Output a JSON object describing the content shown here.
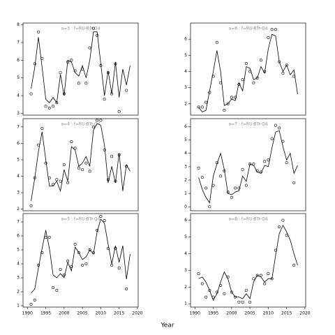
{
  "xlabel": "Year",
  "chart_data": [
    {
      "type": "line",
      "title": "a=3 : f=RU-BTr-Q4",
      "x": [
        1991,
        1992,
        1993,
        1994,
        1995,
        1996,
        1997,
        1998,
        1999,
        2000,
        2001,
        2002,
        2003,
        2004,
        2005,
        2006,
        2007,
        2008,
        2009,
        2010,
        2011,
        2012,
        2013,
        2014,
        2015,
        2016,
        2017,
        2018
      ],
      "series": [
        {
          "style": "points",
          "color": "#000000",
          "values": [
            4.1,
            5.8,
            7.6,
            6.1,
            3.4,
            3.3,
            3.4,
            3.6,
            5.3,
            4.1,
            5.9,
            6.0,
            5.4,
            4.7,
            5.5,
            4.7,
            6.7,
            7.8,
            7.4,
            5.7,
            3.8,
            5.3,
            4.1,
            5.8,
            3.1,
            null,
            4.3,
            null
          ]
        },
        {
          "style": "line",
          "color": "#000000",
          "values": [
            4.4,
            5.6,
            7.3,
            5.6,
            3.8,
            3.6,
            3.9,
            3.6,
            5.2,
            4.0,
            6.0,
            5.9,
            5.3,
            5.1,
            5.7,
            5.0,
            6.0,
            7.6,
            7.6,
            5.8,
            4.0,
            5.4,
            4.1,
            5.9,
            3.9,
            5.5,
            4.6,
            5.7
          ]
        }
      ],
      "xlim": [
        1988.8,
        2020.2
      ],
      "ylim": [
        2.9,
        8.1
      ],
      "yticks": [
        3,
        4,
        5,
        6,
        7,
        8
      ]
    },
    {
      "type": "line",
      "title": "a=6 : f=RU-BTr-Q4",
      "x": [
        1991,
        1992,
        1993,
        1994,
        1995,
        1996,
        1997,
        1998,
        1999,
        2000,
        2001,
        2002,
        2003,
        2004,
        2005,
        2006,
        2007,
        2008,
        2009,
        2010,
        2011,
        2012,
        2013,
        2014,
        2015,
        2016,
        2017,
        2018
      ],
      "series": [
        {
          "style": "points",
          "color": "#000000",
          "values": [
            1.8,
            1.8,
            2.1,
            2.7,
            3.7,
            5.8,
            3.3,
            1.6,
            2.0,
            2.4,
            2.4,
            3.2,
            3.5,
            4.5,
            4.0,
            3.3,
            3.6,
            4.7,
            4.0,
            6.1,
            6.6,
            6.6,
            4.6,
            3.9,
            4.4,
            null,
            3.7,
            null
          ]
        },
        {
          "style": "line",
          "color": "#000000",
          "values": [
            1.8,
            1.5,
            1.6,
            2.8,
            4.0,
            5.3,
            4.0,
            1.9,
            2.0,
            2.3,
            2.2,
            3.3,
            2.8,
            4.3,
            4.2,
            3.5,
            3.6,
            4.3,
            3.9,
            5.4,
            6.3,
            6.2,
            4.6,
            4.0,
            4.4,
            3.8,
            4.1,
            2.6
          ]
        }
      ],
      "xlim": [
        1988.8,
        2020.2
      ],
      "ylim": [
        1.3,
        7.0
      ],
      "yticks": [
        2,
        3,
        4,
        5,
        6
      ]
    },
    {
      "type": "line",
      "title": "a=4 : f=RU-BTr-Q4",
      "x": [
        1991,
        1992,
        1993,
        1994,
        1995,
        1996,
        1997,
        1998,
        1999,
        2000,
        2001,
        2002,
        2003,
        2004,
        2005,
        2006,
        2007,
        2008,
        2009,
        2010,
        2011,
        2012,
        2013,
        2014,
        2015,
        2016,
        2017,
        2018
      ],
      "series": [
        {
          "style": "points",
          "color": "#000000",
          "values": [
            2.2,
            3.9,
            5.9,
            6.9,
            4.8,
            3.9,
            3.5,
            3.8,
            3.7,
            4.7,
            3.6,
            6.1,
            5.7,
            4.5,
            4.4,
            4.8,
            4.3,
            7.0,
            7.4,
            7.4,
            5.6,
            3.8,
            5.2,
            3.7,
            5.3,
            null,
            4.6,
            null
          ]
        },
        {
          "style": "line",
          "color": "#000000",
          "values": [
            2.5,
            3.9,
            5.5,
            6.7,
            5.0,
            3.4,
            3.4,
            3.7,
            3.1,
            4.4,
            3.7,
            5.8,
            5.6,
            4.6,
            4.8,
            5.2,
            4.6,
            6.8,
            7.2,
            7.1,
            5.9,
            3.6,
            4.6,
            3.6,
            5.4,
            3.1,
            4.7,
            4.3
          ]
        }
      ],
      "xlim": [
        1988.8,
        2020.2
      ],
      "ylim": [
        1.9,
        7.5
      ],
      "yticks": [
        2,
        3,
        4,
        5,
        6,
        7
      ]
    },
    {
      "type": "line",
      "title": "a=7 : f=RU-BTr-Q4",
      "x": [
        1991,
        1992,
        1993,
        1994,
        1995,
        1996,
        1997,
        1998,
        1999,
        2000,
        2001,
        2002,
        2003,
        2004,
        2005,
        2006,
        2007,
        2008,
        2009,
        2010,
        2011,
        2012,
        2013,
        2014,
        2015,
        2016,
        2017,
        2018
      ],
      "series": [
        {
          "style": "points",
          "color": "#000000",
          "values": [
            2.9,
            2.2,
            1.4,
            0.0,
            1.6,
            3.3,
            2.3,
            2.7,
            1.1,
            0.7,
            1.4,
            1.4,
            2.8,
            1.6,
            3.2,
            3.2,
            2.7,
            2.6,
            3.4,
            3.5,
            5.1,
            6.1,
            5.9,
            4.9,
            3.3,
            null,
            1.8,
            null
          ]
        },
        {
          "style": "line",
          "color": "#000000",
          "values": [
            2.2,
            1.3,
            0.7,
            0.3,
            2.3,
            3.2,
            4.0,
            2.8,
            1.0,
            0.9,
            1.1,
            1.2,
            2.3,
            1.9,
            3.2,
            3.1,
            2.6,
            2.5,
            3.1,
            3.0,
            4.4,
            5.6,
            5.7,
            4.5,
            3.5,
            4.0,
            2.5,
            3.1
          ]
        }
      ],
      "xlim": [
        1988.8,
        2020.2
      ],
      "ylim": [
        -0.3,
        6.6
      ],
      "yticks": [
        0,
        1,
        2,
        3,
        4,
        5,
        6
      ]
    },
    {
      "type": "line",
      "title": "a=5 : f=RU-BTr-Q4",
      "x": [
        1991,
        1992,
        1993,
        1994,
        1995,
        1996,
        1997,
        1998,
        1999,
        2000,
        2001,
        2002,
        2003,
        2004,
        2005,
        2006,
        2007,
        2008,
        2009,
        2010,
        2011,
        2012,
        2013,
        2014,
        2015,
        2016,
        2017,
        2018
      ],
      "series": [
        {
          "style": "points",
          "color": "#000000",
          "values": [
            1.1,
            1.4,
            3.9,
            4.8,
            5.9,
            5.9,
            2.3,
            2.1,
            3.6,
            3.2,
            4.2,
            3.8,
            5.4,
            4.8,
            3.9,
            4.0,
            5.0,
            4.8,
            6.4,
            7.4,
            7.1,
            5.1,
            3.9,
            5.1,
            3.7,
            null,
            2.2,
            null
          ]
        },
        {
          "style": "line",
          "color": "#000000",
          "values": [
            1.9,
            2.2,
            3.7,
            5.1,
            6.4,
            5.1,
            3.2,
            3.0,
            3.3,
            3.0,
            4.1,
            3.5,
            5.2,
            4.8,
            4.3,
            4.5,
            5.0,
            4.7,
            6.3,
            7.2,
            6.9,
            5.4,
            4.0,
            5.3,
            4.1,
            5.3,
            2.9,
            4.7
          ]
        }
      ],
      "xlim": [
        1988.8,
        2020.2
      ],
      "ylim": [
        0.9,
        7.6
      ],
      "yticks": [
        1,
        2,
        3,
        4,
        5,
        6,
        7
      ],
      "xticks": [
        1990,
        1995,
        2000,
        2005,
        2010,
        2015,
        2020
      ]
    },
    {
      "type": "line",
      "title": "a=8 : f=RU-BTr-Q4",
      "x": [
        1991,
        1992,
        1993,
        1994,
        1995,
        1996,
        1997,
        1998,
        1999,
        2000,
        2001,
        2002,
        2003,
        2004,
        2005,
        2006,
        2007,
        2008,
        2009,
        2010,
        2011,
        2012,
        2013,
        2014,
        2015,
        2016,
        2017,
        2018
      ],
      "series": [
        {
          "style": "points",
          "color": "#000000",
          "values": [
            2.8,
            2.2,
            1.4,
            1.8,
            1.4,
            1.7,
            2.1,
            1.6,
            2.6,
            1.7,
            1.4,
            1.1,
            1.1,
            1.8,
            1.1,
            2.5,
            2.7,
            2.7,
            2.2,
            2.8,
            2.5,
            4.2,
            5.6,
            6.0,
            5.1,
            null,
            3.3,
            null
          ]
        },
        {
          "style": "line",
          "color": "#000000",
          "values": [
            2.5,
            2.6,
            2.3,
            1.8,
            1.2,
            1.6,
            2.3,
            2.9,
            2.5,
            1.7,
            1.4,
            1.4,
            1.3,
            1.6,
            1.3,
            2.3,
            2.7,
            2.6,
            2.3,
            2.5,
            2.5,
            3.9,
            5.2,
            5.7,
            5.3,
            4.8,
            4.0,
            3.3
          ]
        }
      ],
      "xlim": [
        1988.8,
        2020.2
      ],
      "ylim": [
        0.8,
        6.4
      ],
      "yticks": [
        1,
        2,
        3,
        4,
        5,
        6
      ],
      "xticks": [
        1990,
        1995,
        2000,
        2005,
        2010,
        2015,
        2020
      ]
    }
  ]
}
